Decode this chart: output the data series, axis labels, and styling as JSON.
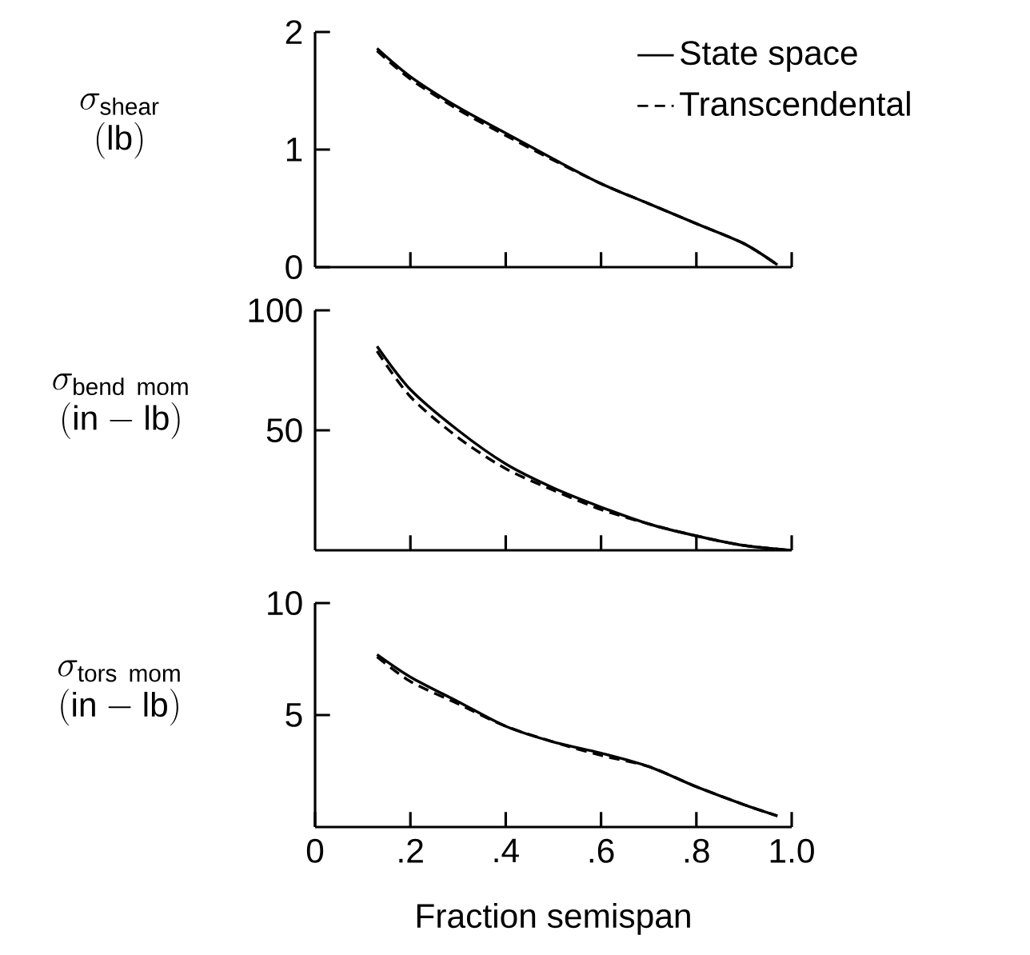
{
  "chart_data": [
    {
      "type": "line",
      "ylabel": "\\begin{array}{c}\\sigma_{\\mathrm{shear}}\\\\ \\mathrm{(lb)}\\end{array}",
      "xlim": [
        0,
        1
      ],
      "ylim": [
        0,
        2
      ],
      "xticks": [
        0.2,
        0.4,
        0.6,
        0.8,
        1.0
      ],
      "yticks": [
        0,
        1,
        2
      ],
      "tick_labels": "y",
      "legend": "top right",
      "series": [
        {
          "name": "State space",
          "color": "#000000",
          "line_style": "solid",
          "x": [
            0.13,
            0.2,
            0.3,
            0.4,
            0.5,
            0.6,
            0.7,
            0.8,
            0.9,
            0.97
          ],
          "values": [
            1.86,
            1.62,
            1.36,
            1.14,
            0.92,
            0.71,
            0.54,
            0.37,
            0.2,
            0.02
          ]
        },
        {
          "name": "Transcendental",
          "color": "#000000",
          "line_style": "dashed",
          "x": [
            0.13,
            0.2,
            0.3,
            0.4,
            0.5,
            0.6,
            0.7,
            0.8,
            0.9,
            0.97
          ],
          "values": [
            1.84,
            1.6,
            1.34,
            1.12,
            0.91,
            0.71,
            0.54,
            0.37,
            0.2,
            0.02
          ]
        }
      ]
    },
    {
      "type": "line",
      "ylabel": "\\begin{array}{c}\\sigma_{\\mathrm{bend\\ mom}}\\\\ \\mathrm{(in-lb)}\\end{array}",
      "xlim": [
        0,
        1
      ],
      "ylim": [
        0,
        100
      ],
      "xticks": [
        0.2,
        0.4,
        0.6,
        0.8,
        1.0
      ],
      "yticks": [
        50,
        100
      ],
      "tick_labels": "y",
      "series": [
        {
          "color": "#000000",
          "line_style": "solid",
          "x": [
            0.13,
            0.2,
            0.3,
            0.4,
            0.5,
            0.6,
            0.7,
            0.8,
            0.9,
            1.0
          ],
          "values": [
            85,
            67,
            50,
            36,
            26,
            18,
            11,
            6,
            2,
            0
          ]
        },
        {
          "color": "#000000",
          "line_style": "dashed",
          "x": [
            0.13,
            0.2,
            0.3,
            0.4,
            0.5,
            0.6,
            0.7,
            0.8,
            0.9,
            1.0
          ],
          "values": [
            83,
            64,
            47,
            34,
            25,
            17,
            11,
            6,
            2,
            0
          ]
        }
      ]
    },
    {
      "type": "line",
      "ylabel": "\\begin{array}{c}\\sigma_{\\mathrm{tors\\ mom}}\\\\ \\mathrm{(in-lb)}\\end{array}",
      "xlabel": "Fraction semispan",
      "xlim": [
        0,
        1
      ],
      "ylim": [
        0,
        10
      ],
      "xticks": [
        {
          "value": 0,
          "label": "0"
        },
        {
          "value": 0.2,
          "label": ".2"
        },
        {
          "value": 0.4,
          "label": ".4"
        },
        {
          "value": 0.6,
          "label": ".6"
        },
        {
          "value": 0.8,
          "label": ".8"
        },
        {
          "value": 1.0,
          "label": "1.0"
        }
      ],
      "yticks": [
        5,
        10
      ],
      "series": [
        {
          "color": "#000000",
          "line_style": "solid",
          "x": [
            0.13,
            0.2,
            0.3,
            0.4,
            0.5,
            0.6,
            0.7,
            0.8,
            0.9,
            0.97
          ],
          "values": [
            7.7,
            6.7,
            5.6,
            4.5,
            3.8,
            3.3,
            2.7,
            1.8,
            1.0,
            0.5
          ]
        },
        {
          "color": "#000000",
          "line_style": "dashed",
          "x": [
            0.13,
            0.2,
            0.3,
            0.4,
            0.5,
            0.6,
            0.7,
            0.8,
            0.9,
            0.97
          ],
          "values": [
            7.6,
            6.5,
            5.5,
            4.5,
            3.8,
            3.2,
            2.7,
            1.8,
            1.0,
            0.5
          ]
        }
      ]
    }
  ]
}
